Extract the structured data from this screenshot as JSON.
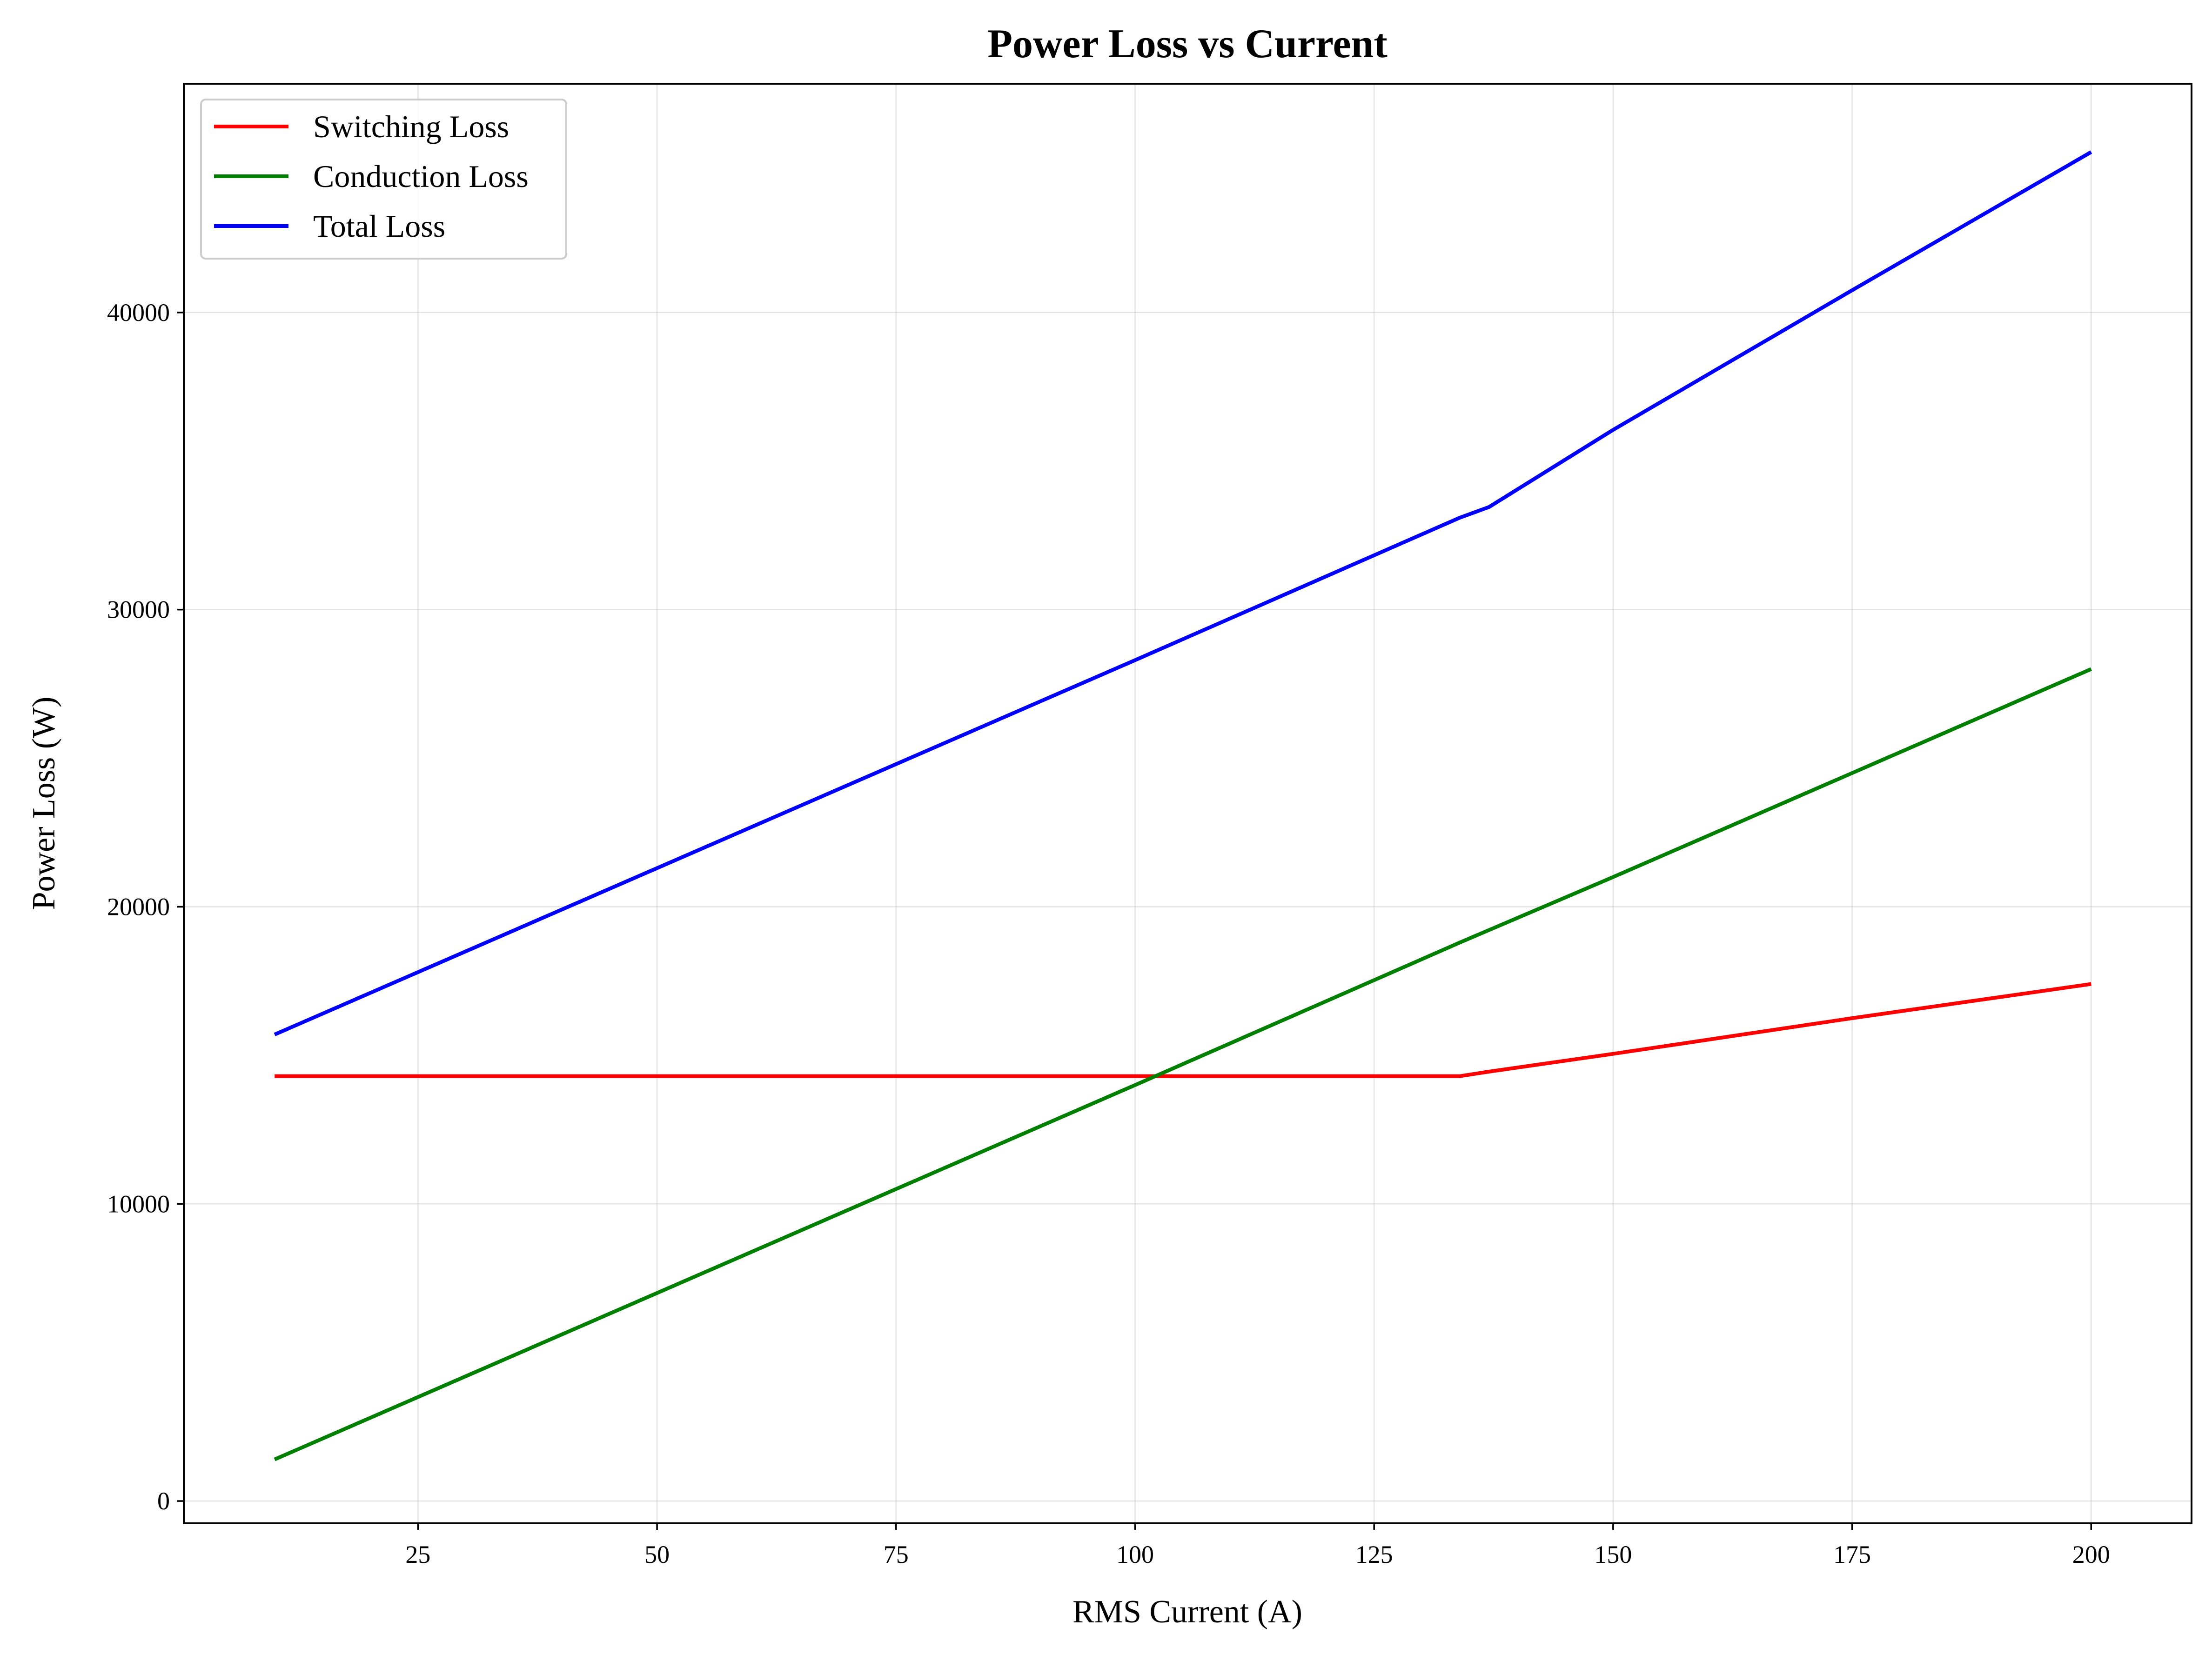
{
  "chart_data": {
    "type": "line",
    "title": "Power Loss vs Current",
    "xlabel": "RMS Current (A)",
    "ylabel": "Power Loss (W)",
    "xlim": [
      0.5,
      210.5
    ],
    "ylim": [
      -750,
      47700
    ],
    "xticks": [
      25,
      50,
      75,
      100,
      125,
      150,
      175,
      200
    ],
    "yticks": [
      0,
      10000,
      20000,
      30000,
      40000
    ],
    "grid": true,
    "legend_position": "upper-left",
    "series": [
      {
        "name": "Switching Loss",
        "color": "#ff0000",
        "x": [
          10,
          134,
          137,
          150,
          175,
          200
        ],
        "y": [
          14300,
          14300,
          14450,
          15050,
          16250,
          17400
        ]
      },
      {
        "name": "Conduction Loss",
        "color": "#008000",
        "x": [
          10,
          50,
          100,
          134,
          150,
          175,
          200
        ],
        "y": [
          1400,
          7000,
          14000,
          18800,
          21000,
          24500,
          28000
        ]
      },
      {
        "name": "Total Loss",
        "color": "#0000ff",
        "x": [
          10,
          50,
          100,
          134,
          137,
          150,
          175,
          200
        ],
        "y": [
          15700,
          21300,
          28300,
          33100,
          33450,
          36050,
          40750,
          45400
        ]
      }
    ]
  }
}
